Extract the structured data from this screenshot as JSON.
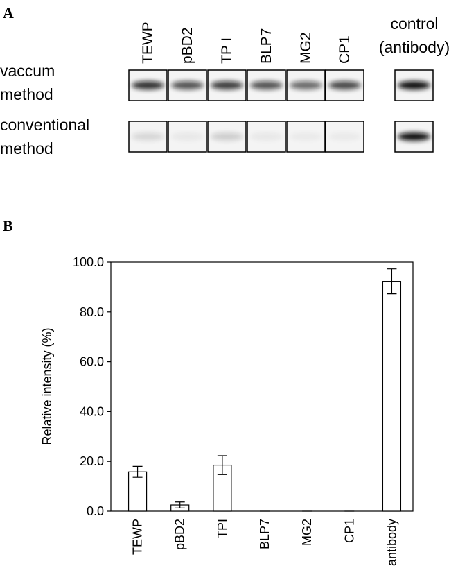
{
  "panel_a": {
    "label": "A",
    "lanes": [
      "TEWP",
      "pBD2",
      "TP I",
      "BLP7",
      "MG2",
      "CP1"
    ],
    "control_label": [
      "control",
      "(antibody)"
    ],
    "rows": [
      [
        "vaccum",
        "method"
      ],
      [
        "conventional",
        "method"
      ]
    ]
  },
  "chart_data": {
    "type": "bar",
    "panel_label": "B",
    "y_label": "Relative intensity (%)",
    "categories": [
      "TEWP",
      "pBD2",
      "TPI",
      "BLP7",
      "MG2",
      "CP1",
      "antibody"
    ],
    "values": [
      15.8,
      2.5,
      18.5,
      0,
      0,
      0,
      92.3
    ],
    "errors": [
      2.2,
      1.2,
      3.8,
      0,
      0,
      0,
      5.0
    ],
    "color": "#ffffff",
    "ylim": [
      0,
      100
    ],
    "yticks": [
      {
        "value": 0,
        "label": "0.0"
      },
      {
        "value": 20,
        "label": "20.0"
      },
      {
        "value": 40,
        "label": "40.0"
      },
      {
        "value": 60,
        "label": "60.0"
      },
      {
        "value": 80,
        "label": "80.0"
      },
      {
        "value": 100,
        "label": "100.0"
      }
    ]
  }
}
